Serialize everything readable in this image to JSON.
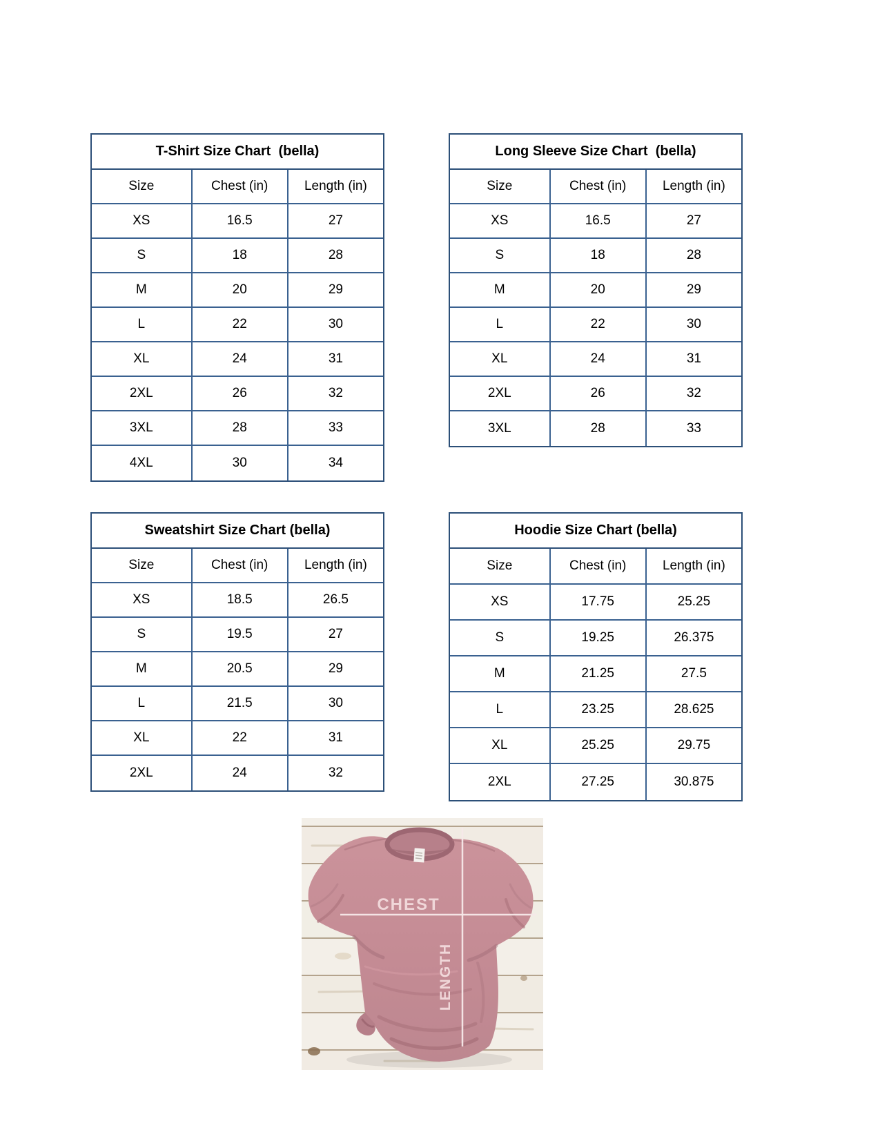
{
  "page": {
    "background": "#ffffff",
    "table_border_color": "#2c4f78",
    "table_grid_color": "#3a6190"
  },
  "tables": [
    {
      "id": "tshirt",
      "title": "T-Shirt Size Chart  (bella)",
      "headers": [
        "Size",
        "Chest (in)",
        "Length (in)"
      ],
      "rows": [
        [
          "XS",
          "16.5",
          "27"
        ],
        [
          "S",
          "18",
          "28"
        ],
        [
          "M",
          "20",
          "29"
        ],
        [
          "L",
          "22",
          "30"
        ],
        [
          "XL",
          "24",
          "31"
        ],
        [
          "2XL",
          "26",
          "32"
        ],
        [
          "3XL",
          "28",
          "33"
        ],
        [
          "4XL",
          "30",
          "34"
        ]
      ]
    },
    {
      "id": "longsleeve",
      "title": "Long Sleeve Size Chart  (bella)",
      "headers": [
        "Size",
        "Chest (in)",
        "Length (in)"
      ],
      "rows": [
        [
          "XS",
          "16.5",
          "27"
        ],
        [
          "S",
          "18",
          "28"
        ],
        [
          "M",
          "20",
          "29"
        ],
        [
          "L",
          "22",
          "30"
        ],
        [
          "XL",
          "24",
          "31"
        ],
        [
          "2XL",
          "26",
          "32"
        ],
        [
          "3XL",
          "28",
          "33"
        ]
      ]
    },
    {
      "id": "sweatshirt",
      "title": "Sweatshirt Size Chart (bella)",
      "headers": [
        "Size",
        "Chest (in)",
        "Length (in)"
      ],
      "rows": [
        [
          "XS",
          "18.5",
          "26.5"
        ],
        [
          "S",
          "19.5",
          "27"
        ],
        [
          "M",
          "20.5",
          "29"
        ],
        [
          "L",
          "21.5",
          "30"
        ],
        [
          "XL",
          "22",
          "31"
        ],
        [
          "2XL",
          "24",
          "32"
        ]
      ]
    },
    {
      "id": "hoodie",
      "title": "Hoodie Size Chart (bella)",
      "headers": [
        "Size",
        "Chest (in)",
        "Length (in)"
      ],
      "rows": [
        [
          "XS",
          "17.75",
          "25.25"
        ],
        [
          "S",
          "19.25",
          "26.375"
        ],
        [
          "M",
          "21.25",
          "27.5"
        ],
        [
          "L",
          "23.25",
          "28.625"
        ],
        [
          "XL",
          "25.25",
          "29.75"
        ],
        [
          "2XL",
          "27.25",
          "30.875"
        ]
      ]
    }
  ],
  "photo": {
    "chest_label": "CHEST",
    "length_label": "LENGTH",
    "shirt_color": "#c48b94",
    "measure_line_color": "#f7e9ea",
    "label_color": "#f0d7d9",
    "wood_color": "#f3efe8"
  }
}
